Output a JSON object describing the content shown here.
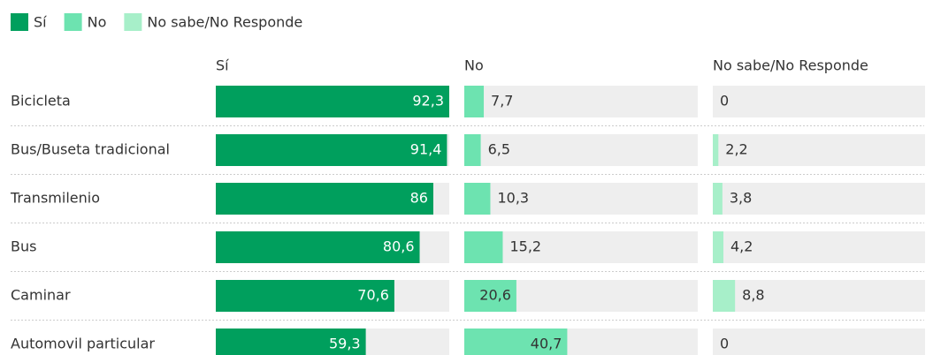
{
  "chart_data": {
    "type": "bar",
    "categories": [
      "Bicicleta",
      "Bus/Buseta tradicional",
      "Transmilenio",
      "Bus",
      "Caminar",
      "Automovil particular"
    ],
    "series": [
      {
        "name": "Sí",
        "color": "#009f5d",
        "values": [
          92.3,
          91.4,
          86,
          80.6,
          70.6,
          59.3
        ],
        "value_labels": [
          "92,3",
          "91,4",
          "86",
          "80,6",
          "70,6",
          "59,3"
        ]
      },
      {
        "name": "No",
        "color": "#6de3b0",
        "values": [
          7.7,
          6.5,
          10.3,
          15.2,
          20.6,
          40.7
        ],
        "value_labels": [
          "7,7",
          "6,5",
          "10,3",
          "15,2",
          "20,6",
          "40,7"
        ]
      },
      {
        "name": "No sabe/No Responde",
        "color": "#a7efc9",
        "values": [
          0,
          2.2,
          3.8,
          4.2,
          8.8,
          0
        ],
        "value_labels": [
          "0",
          "2,2",
          "3,8",
          "4,2",
          "8,8",
          "0"
        ]
      }
    ],
    "legend": "top-left"
  }
}
